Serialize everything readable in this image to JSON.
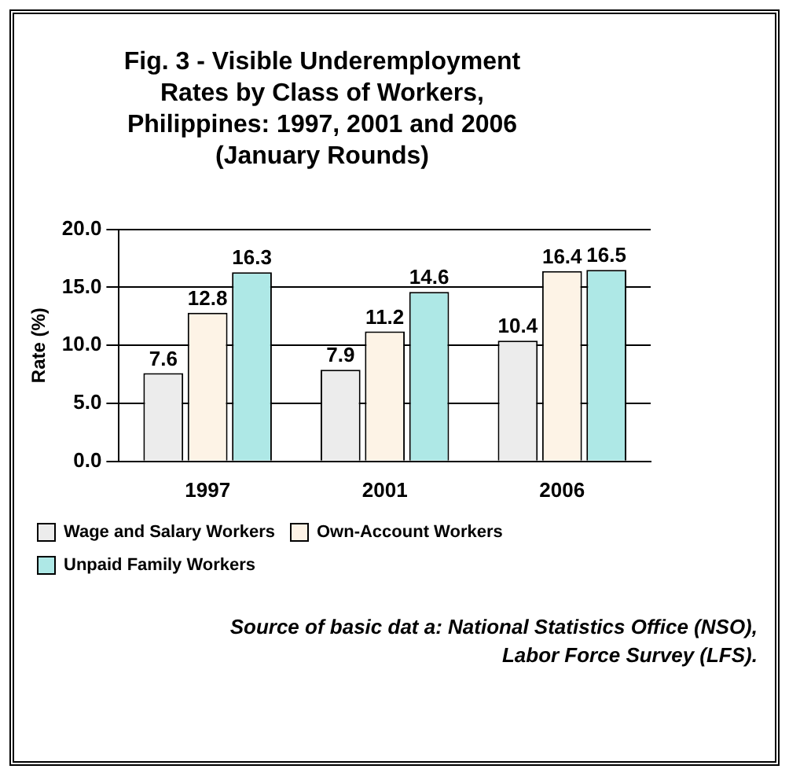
{
  "chart_data": {
    "type": "bar",
    "title": "Fig. 3 - Visible Underemployment\nRates by Class of Workers,\nPhilippines: 1997, 2001 and 2006\n(January Rounds)",
    "ylabel": "Rate (%)",
    "categories": [
      "1997",
      "2001",
      "2006"
    ],
    "series": [
      {
        "name": "Wage and Salary Workers",
        "color": "#ececec",
        "values": [
          7.6,
          7.9,
          10.4
        ]
      },
      {
        "name": "Own-Account Workers",
        "color": "#fdf3e6",
        "values": [
          12.8,
          11.2,
          16.4
        ]
      },
      {
        "name": "Unpaid Family Workers",
        "color": "#aee8e6",
        "values": [
          16.3,
          14.6,
          16.5
        ]
      }
    ],
    "ylim": [
      0,
      20
    ],
    "yticks": [
      {
        "value": 0,
        "label": "0.0"
      },
      {
        "value": 5,
        "label": "5.0"
      },
      {
        "value": 10,
        "label": "10.0"
      },
      {
        "value": 15,
        "label": "15.0"
      },
      {
        "value": 20,
        "label": "20.0"
      }
    ],
    "grid": "y",
    "legend": "bottom",
    "data_labels": true,
    "annotations": [
      "Source of basic dat a:  National Statistics Office (NSO),",
      "Labor Force Survey (LFS)."
    ]
  }
}
